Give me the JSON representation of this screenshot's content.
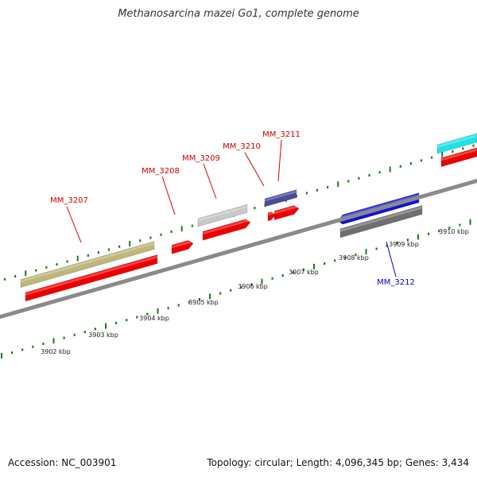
{
  "title": "Methanosarcina mazei Go1, complete genome",
  "footer": {
    "accession": "Accession: NC_003901",
    "summary": "Topology: circular; Length: 4,096,345 bp; Genes: 3,434"
  },
  "axis": {
    "unit": "kbp",
    "labels": [
      "3902 kbp",
      "3903 kbp",
      "3904 kbp",
      "3905 kbp",
      "3906 kbp",
      "3907 kbp",
      "3908 kbp",
      "3909 kbp",
      "3910 kbp"
    ]
  },
  "colors": {
    "backbone": "#8a8a8a",
    "tick": "#1e7a1e",
    "forward_label": "#cc0000",
    "reverse_label": "#0000cc"
  },
  "features": [
    {
      "id": "MM_3207",
      "label": "MM_3207",
      "strand": "forward",
      "color": "#bdb87a",
      "cds_color": "#ee0000"
    },
    {
      "id": "MM_3208",
      "label": "MM_3208",
      "strand": "forward",
      "color": "#ee0000"
    },
    {
      "id": "MM_3209",
      "label": "MM_3209",
      "strand": "forward",
      "color": "#c8c8c8",
      "cds_color": "#ee0000"
    },
    {
      "id": "MM_3210",
      "label": "MM_3210",
      "strand": "forward",
      "color": "#ee0000"
    },
    {
      "id": "MM_3211",
      "label": "MM_3211",
      "strand": "forward",
      "color": "#4b4b99",
      "cds_color": "#ee0000"
    },
    {
      "id": "MM_3212",
      "label": "MM_3212",
      "strand": "reverse",
      "color": "#1010e0",
      "cds_color": "#6e6e6e"
    },
    {
      "id": "MM_3213",
      "label": "",
      "strand": "forward",
      "color": "#22e0e8",
      "cds_color": "#ee0000"
    }
  ]
}
